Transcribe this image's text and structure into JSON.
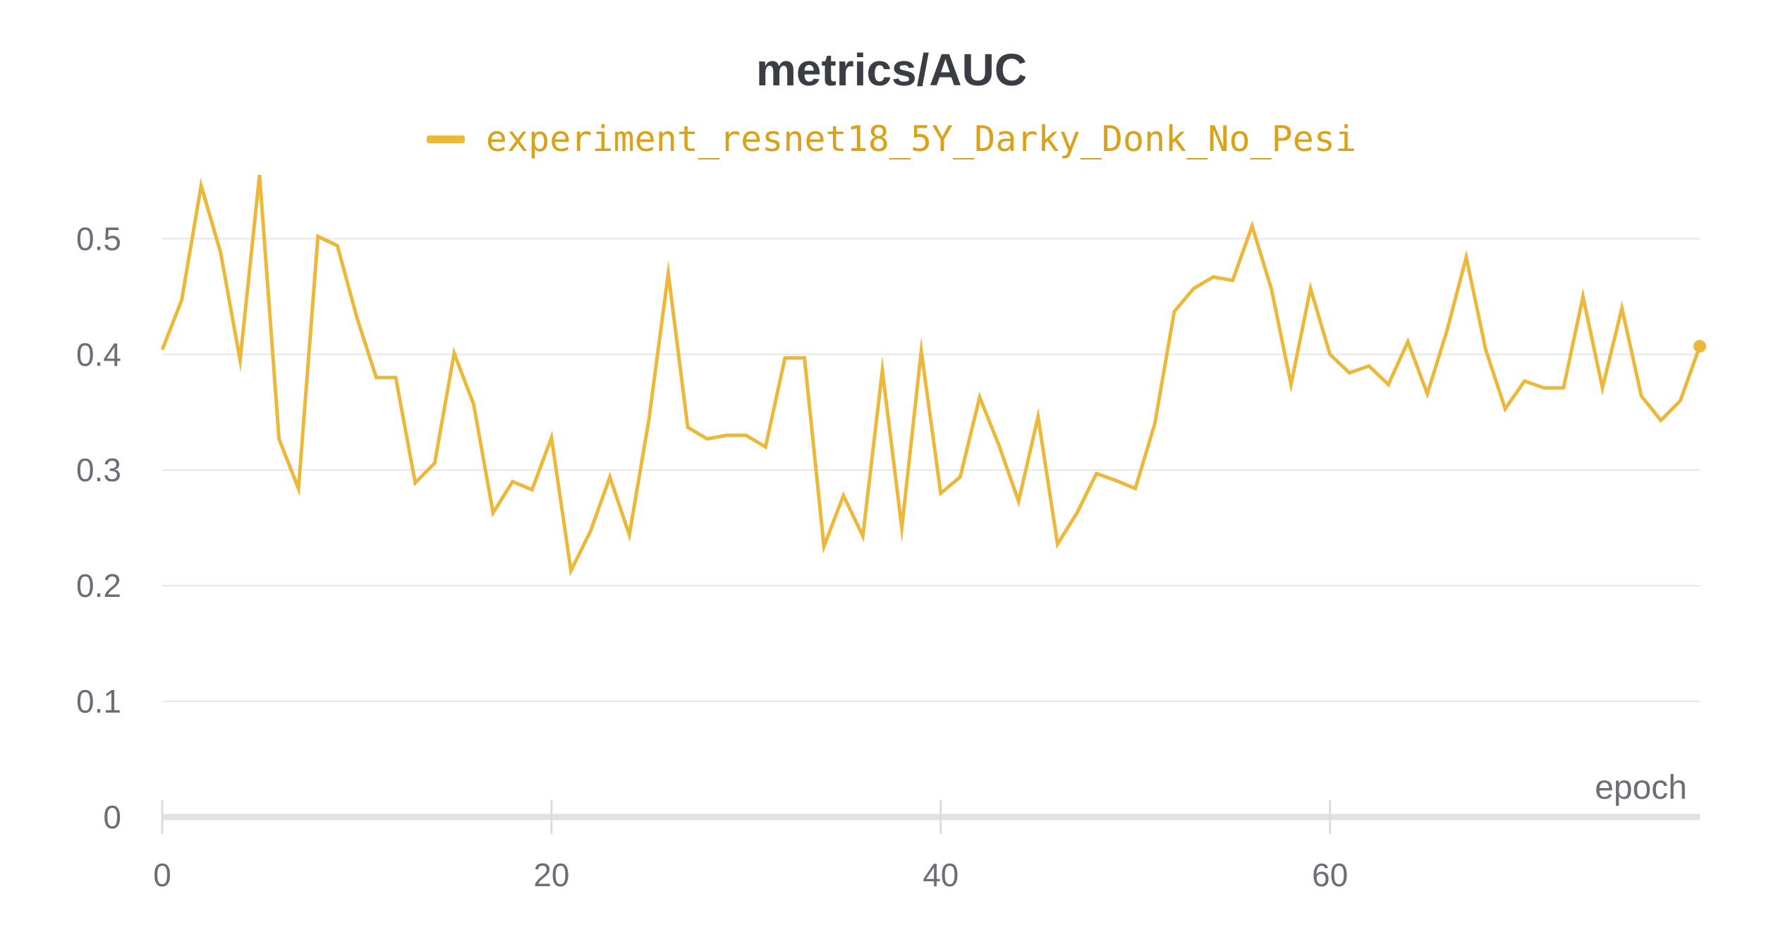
{
  "chart_data": {
    "type": "line",
    "title": "metrics/AUC",
    "xlabel": "epoch",
    "ylabel": "",
    "xlim": [
      0,
      79
    ],
    "ylim": [
      0,
      0.56
    ],
    "x_ticks": [
      "0",
      "20",
      "40",
      "60"
    ],
    "y_ticks": [
      "0",
      "0.1",
      "0.2",
      "0.3",
      "0.4",
      "0.5"
    ],
    "grid": "horizontal",
    "legend_position": "top-center",
    "series": [
      {
        "name": "experiment_resnet18_5Y_Darky_Donk_No_Pesi",
        "color": "#ecb83a",
        "label_color": "#d9a21a",
        "x": [
          0,
          1,
          2,
          3,
          4,
          5,
          6,
          7,
          8,
          9,
          10,
          11,
          12,
          13,
          14,
          15,
          16,
          17,
          18,
          19,
          20,
          21,
          22,
          23,
          24,
          25,
          26,
          27,
          28,
          29,
          30,
          31,
          32,
          33,
          34,
          35,
          36,
          37,
          38,
          39,
          40,
          41,
          42,
          43,
          44,
          45,
          46,
          47,
          48,
          49,
          50,
          51,
          52,
          53,
          54,
          55,
          56,
          57,
          58,
          59,
          60,
          61,
          62,
          63,
          64,
          65,
          66,
          67,
          68,
          69,
          70,
          71,
          72,
          73,
          74,
          75,
          76,
          77,
          78,
          79
        ],
        "values": [
          0.404,
          0.447,
          0.546,
          0.488,
          0.395,
          0.555,
          0.327,
          0.284,
          0.502,
          0.494,
          0.432,
          0.38,
          0.38,
          0.289,
          0.306,
          0.401,
          0.357,
          0.263,
          0.29,
          0.283,
          0.328,
          0.213,
          0.247,
          0.294,
          0.244,
          0.343,
          0.47,
          0.337,
          0.327,
          0.33,
          0.33,
          0.32,
          0.397,
          0.397,
          0.234,
          0.278,
          0.243,
          0.386,
          0.25,
          0.403,
          0.28,
          0.294,
          0.363,
          0.321,
          0.273,
          0.346,
          0.236,
          0.263,
          0.297,
          0.291,
          0.284,
          0.34,
          0.437,
          0.457,
          0.467,
          0.464,
          0.511,
          0.456,
          0.374,
          0.457,
          0.4,
          0.384,
          0.39,
          0.374,
          0.411,
          0.366,
          0.42,
          0.484,
          0.404,
          0.353,
          0.377,
          0.371,
          0.371,
          0.45,
          0.371,
          0.44,
          0.364,
          0.343,
          0.36,
          0.407
        ]
      }
    ]
  }
}
